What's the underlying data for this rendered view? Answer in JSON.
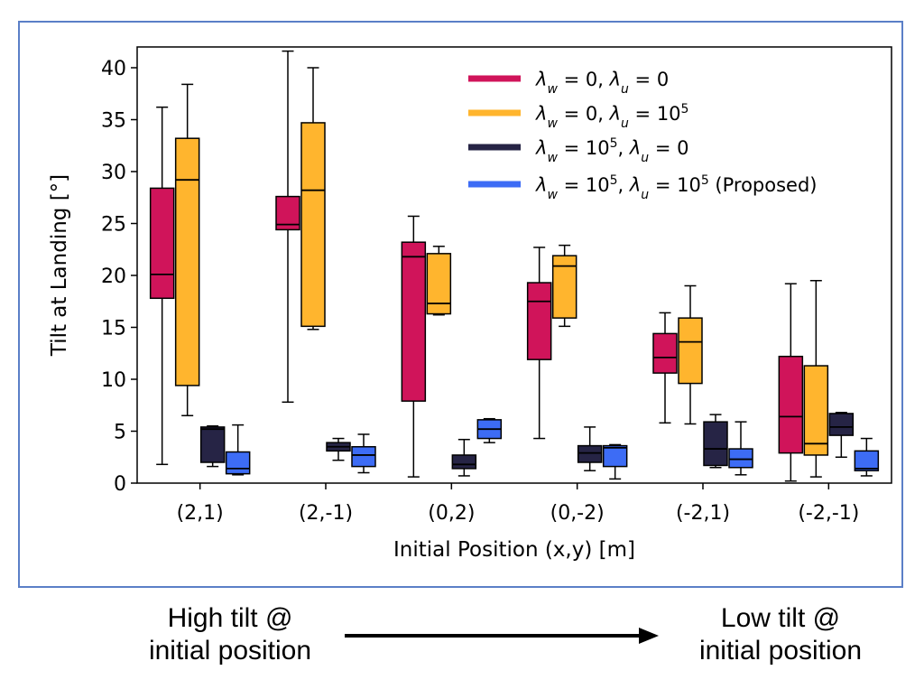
{
  "chart_data": {
    "type": "boxplot",
    "title": "",
    "xlabel": "Initial Position (x,y) [m]",
    "ylabel": "Tilt at Landing [°]",
    "ylim": [
      0,
      42
    ],
    "yticks": [
      0,
      5,
      10,
      15,
      20,
      25,
      30,
      35,
      40
    ],
    "categories": [
      "(2,1)",
      "(2,-1)",
      "(0,2)",
      "(0,-2)",
      "(-2,1)",
      "(-2,-1)"
    ],
    "legend_placement": "top-right",
    "series": [
      {
        "name": "λ_w = 0, λ_u = 0",
        "color": "#d0145a",
        "boxes": [
          {
            "whislo": 1.8,
            "q1": 17.8,
            "med": 20.1,
            "q3": 28.4,
            "whishi": 36.2
          },
          {
            "whislo": 7.8,
            "q1": 24.4,
            "med": 24.9,
            "q3": 27.6,
            "whishi": 41.6
          },
          {
            "whislo": 0.6,
            "q1": 7.9,
            "med": 21.8,
            "q3": 23.2,
            "whishi": 25.7
          },
          {
            "whislo": 4.3,
            "q1": 11.9,
            "med": 17.5,
            "q3": 19.3,
            "whishi": 22.7
          },
          {
            "whislo": 5.8,
            "q1": 10.6,
            "med": 12.1,
            "q3": 14.4,
            "whishi": 16.4
          },
          {
            "whislo": 0.2,
            "q1": 2.9,
            "med": 6.4,
            "q3": 12.2,
            "whishi": 19.2
          }
        ]
      },
      {
        "name": "λ_w = 0, λ_u = 10^5",
        "color": "#ffb52e",
        "boxes": [
          {
            "whislo": 6.5,
            "q1": 9.4,
            "med": 29.2,
            "q3": 33.2,
            "whishi": 38.4
          },
          {
            "whislo": 14.8,
            "q1": 15.1,
            "med": 28.2,
            "q3": 34.7,
            "whishi": 40.0
          },
          {
            "whislo": 16.2,
            "q1": 16.3,
            "med": 17.3,
            "q3": 22.1,
            "whishi": 22.8
          },
          {
            "whislo": 15.1,
            "q1": 15.9,
            "med": 20.9,
            "q3": 21.9,
            "whishi": 22.9
          },
          {
            "whislo": 5.7,
            "q1": 9.6,
            "med": 13.6,
            "q3": 15.9,
            "whishi": 19.0
          },
          {
            "whislo": 0.6,
            "q1": 2.7,
            "med": 3.8,
            "q3": 11.3,
            "whishi": 19.5
          }
        ]
      },
      {
        "name": "λ_w = 10^5, λ_u = 0",
        "color": "#262445",
        "boxes": [
          {
            "whislo": 1.6,
            "q1": 2.0,
            "med": 5.2,
            "q3": 5.4,
            "whishi": 5.5
          },
          {
            "whislo": 2.2,
            "q1": 3.1,
            "med": 3.5,
            "q3": 3.9,
            "whishi": 4.3
          },
          {
            "whislo": 0.7,
            "q1": 1.4,
            "med": 1.8,
            "q3": 2.7,
            "whishi": 4.2
          },
          {
            "whislo": 1.2,
            "q1": 2.0,
            "med": 2.9,
            "q3": 3.6,
            "whishi": 5.4
          },
          {
            "whislo": 1.5,
            "q1": 1.7,
            "med": 3.3,
            "q3": 5.9,
            "whishi": 6.6
          },
          {
            "whislo": 2.5,
            "q1": 4.6,
            "med": 5.4,
            "q3": 6.7,
            "whishi": 6.8
          }
        ]
      },
      {
        "name": "λ_w = 10^5, λ_u = 10^5 (Proposed)",
        "color": "#3d6cf5",
        "boxes": [
          {
            "whislo": 0.8,
            "q1": 0.9,
            "med": 1.4,
            "q3": 3.0,
            "whishi": 5.6
          },
          {
            "whislo": 1.0,
            "q1": 1.6,
            "med": 2.7,
            "q3": 3.5,
            "whishi": 4.7
          },
          {
            "whislo": 3.9,
            "q1": 4.3,
            "med": 5.2,
            "q3": 6.1,
            "whishi": 6.2
          },
          {
            "whislo": 0.4,
            "q1": 1.6,
            "med": 3.4,
            "q3": 3.6,
            "whishi": 3.7
          },
          {
            "whislo": 0.8,
            "q1": 1.5,
            "med": 2.3,
            "q3": 3.3,
            "whishi": 5.9
          },
          {
            "whislo": 0.7,
            "q1": 1.2,
            "med": 1.4,
            "q3": 3.1,
            "whishi": 4.3
          }
        ]
      }
    ]
  },
  "captions": {
    "left": "High tilt @\ninitial position",
    "right": "Low tilt @\ninitial position"
  }
}
